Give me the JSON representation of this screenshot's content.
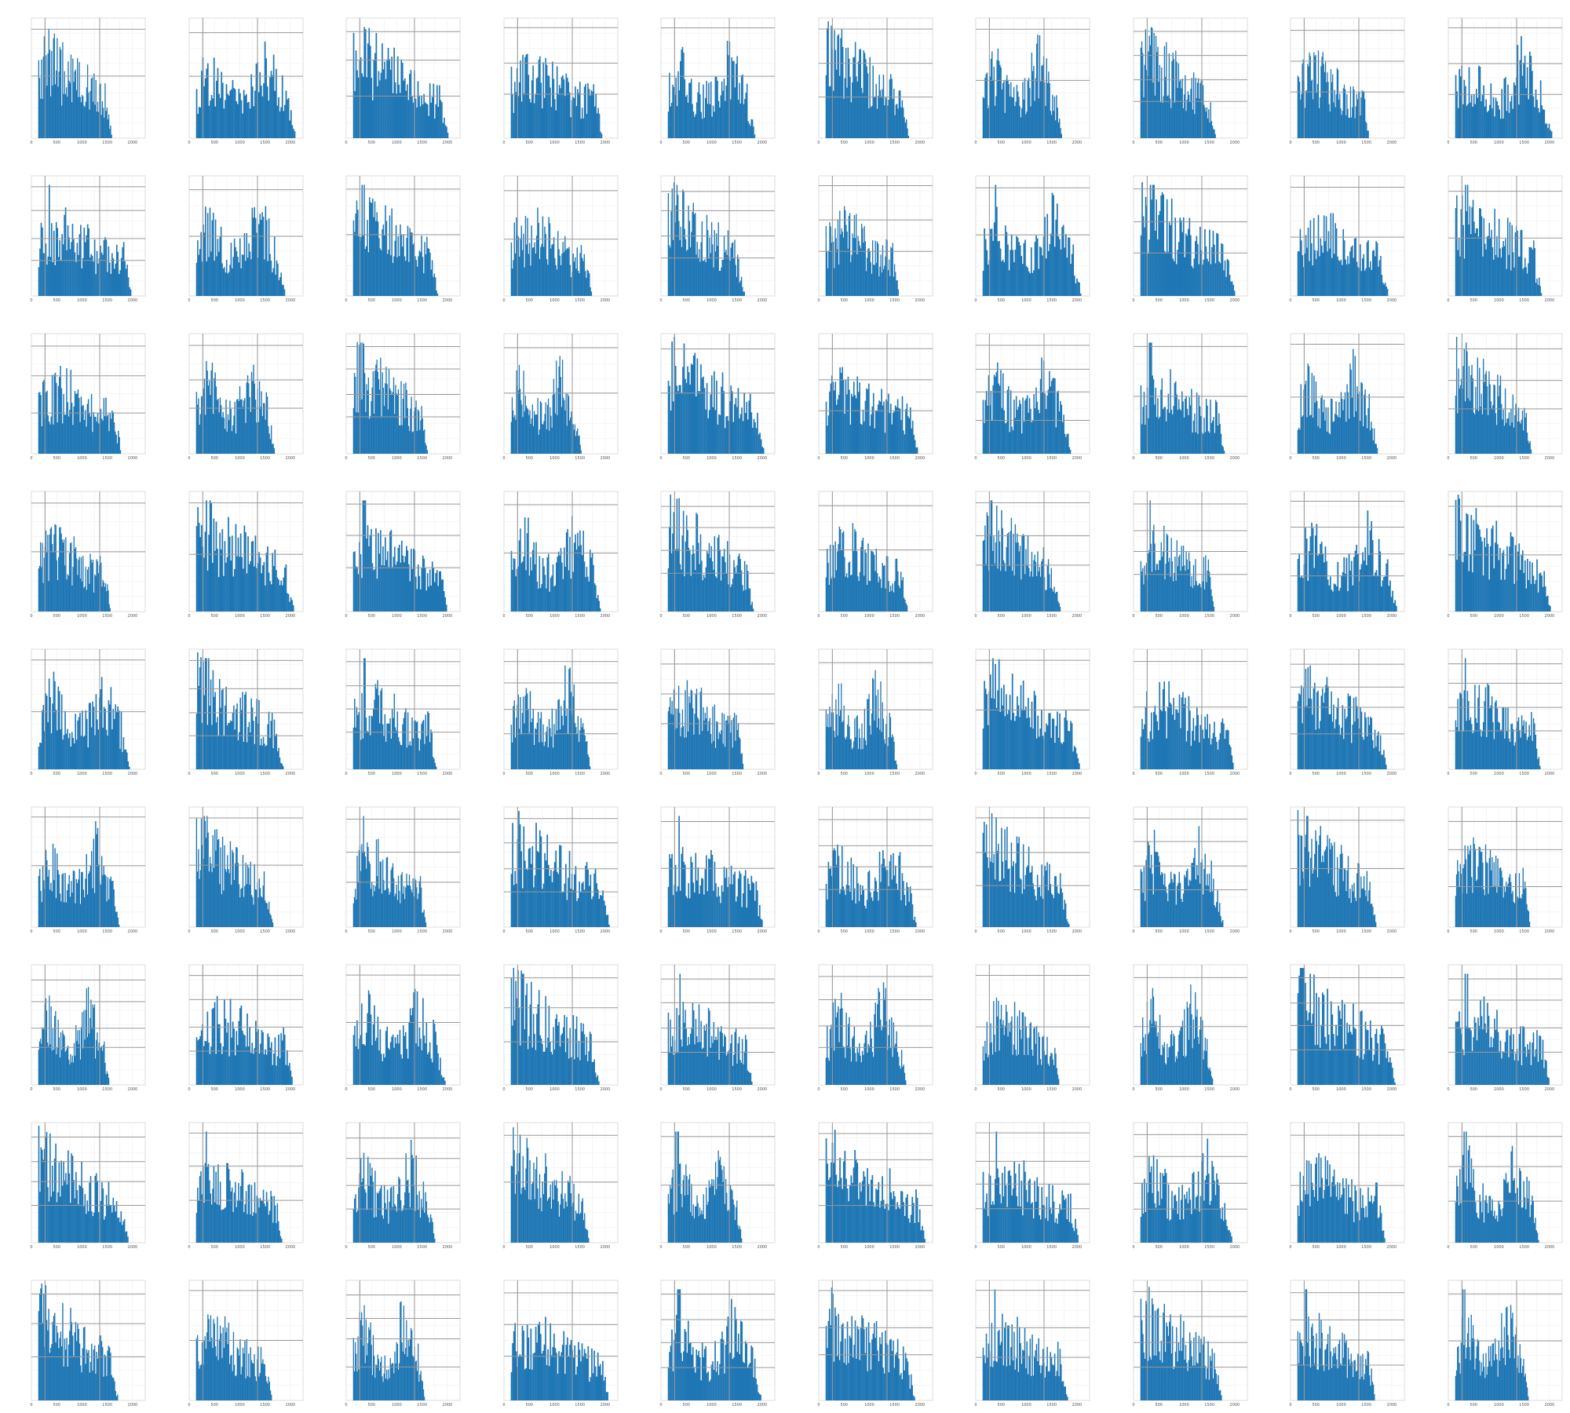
{
  "figure": {
    "rows": 9,
    "cols": 10,
    "bar_color": "#1f77b4",
    "grid_color": "#999999",
    "minor_grid_color": "#eeeeee"
  },
  "chart_data": {
    "type": "bar",
    "panel_count": 90,
    "x_tick_labels": [
      "0",
      "500",
      "1000",
      "1500",
      "2000"
    ],
    "xlim": [
      0,
      2250
    ],
    "xlabel": "",
    "ylabel": "",
    "bars_per_panel": 80,
    "note_values": "Per-panel bar heights are procedurally estimated from the thumbnails and generated in the page script."
  }
}
